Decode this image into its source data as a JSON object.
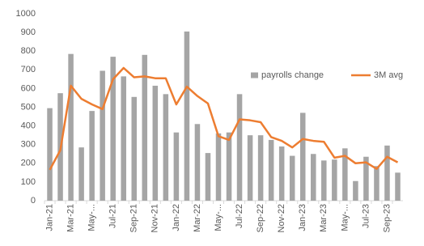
{
  "chart_data": {
    "type": "bar+line",
    "categories": [
      "Jan-21",
      null,
      "Mar-21",
      null,
      "May-...",
      null,
      "Jul-21",
      null,
      "Sep-21",
      null,
      "Nov-21",
      null,
      "Jan-22",
      null,
      "Mar-22",
      null,
      "May-...",
      null,
      "Jul-22",
      null,
      "Sep-22",
      null,
      "Nov-22",
      null,
      "Jan-23",
      null,
      "Mar-23",
      null,
      "May-...",
      null,
      "Jul-23",
      null,
      "Sep-23",
      null
    ],
    "series": [
      {
        "name": "payrolls change",
        "type": "bar",
        "color": "#a5a5a5",
        "values": [
          495,
          575,
          785,
          285,
          480,
          695,
          770,
          665,
          555,
          780,
          615,
          570,
          365,
          905,
          410,
          255,
          360,
          365,
          570,
          350,
          350,
          325,
          290,
          240,
          470,
          250,
          215,
          220,
          280,
          105,
          235,
          185,
          295,
          150
        ]
      },
      {
        "name": "3M avg",
        "type": "line",
        "color": "#ed7d31",
        "values": [
          165,
          270,
          615,
          545,
          515,
          490,
          650,
          710,
          660,
          665,
          655,
          655,
          515,
          610,
          560,
          520,
          345,
          325,
          435,
          430,
          420,
          340,
          320,
          285,
          330,
          320,
          315,
          230,
          240,
          200,
          205,
          170,
          235,
          205
        ]
      }
    ],
    "ylim": [
      0,
      1000
    ],
    "yticks": [
      0,
      100,
      200,
      300,
      400,
      500,
      600,
      700,
      800,
      900,
      1000
    ],
    "grid": false
  }
}
